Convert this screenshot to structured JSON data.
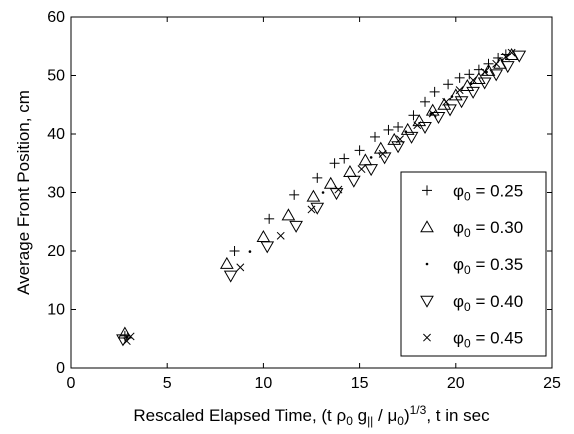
{
  "chart_data": {
    "type": "scatter",
    "title": "",
    "xlabel": "Rescaled Elapsed Time, (t ρ0 g|| / μ0)1/3, t in sec",
    "ylabel": "Average Front Position, cm",
    "xlim": [
      0,
      25
    ],
    "ylim": [
      0,
      60
    ],
    "xticks": [
      0,
      5,
      10,
      15,
      20,
      25
    ],
    "yticks": [
      0,
      10,
      20,
      30,
      40,
      50,
      60
    ],
    "grid": false,
    "legend_position": "bottom-right",
    "series": [
      {
        "name": "φ0 = 0.25",
        "marker": "plus",
        "points": [
          [
            2.8,
            5.5
          ],
          [
            8.5,
            20.0
          ],
          [
            10.3,
            25.5
          ],
          [
            11.6,
            29.6
          ],
          [
            12.8,
            32.5
          ],
          [
            13.7,
            35.0
          ],
          [
            14.2,
            35.8
          ],
          [
            15.0,
            37.2
          ],
          [
            15.8,
            39.5
          ],
          [
            16.5,
            40.7
          ],
          [
            17.0,
            41.2
          ],
          [
            17.8,
            43.2
          ],
          [
            18.4,
            45.5
          ],
          [
            18.9,
            47.2
          ],
          [
            19.6,
            48.5
          ],
          [
            20.2,
            49.6
          ],
          [
            20.7,
            50.2
          ],
          [
            21.2,
            51.0
          ],
          [
            21.7,
            52.0
          ],
          [
            22.2,
            53.0
          ],
          [
            22.6,
            53.6
          ]
        ]
      },
      {
        "name": "φ0 = 0.30",
        "marker": "triangle-up",
        "points": [
          [
            2.8,
            5.9
          ],
          [
            8.1,
            17.8
          ],
          [
            10.0,
            22.4
          ],
          [
            11.3,
            26.1
          ],
          [
            12.6,
            29.3
          ],
          [
            13.5,
            31.5
          ],
          [
            14.5,
            33.5
          ],
          [
            15.3,
            35.5
          ],
          [
            16.1,
            37.5
          ],
          [
            16.8,
            39.0
          ],
          [
            17.5,
            40.7
          ],
          [
            18.1,
            42.2
          ],
          [
            18.8,
            44.0
          ],
          [
            19.4,
            45.0
          ],
          [
            20.0,
            46.6
          ],
          [
            20.6,
            48.2
          ],
          [
            21.2,
            49.4
          ],
          [
            21.7,
            50.8
          ],
          [
            22.3,
            52.0
          ],
          [
            22.9,
            53.5
          ]
        ]
      },
      {
        "name": "φ0 = 0.35",
        "marker": "dot",
        "points": [
          [
            2.9,
            5.3
          ],
          [
            9.3,
            19.9
          ],
          [
            13.1,
            30.0
          ],
          [
            15.6,
            36.0
          ],
          [
            17.4,
            40.4
          ],
          [
            18.7,
            43.5
          ],
          [
            19.8,
            46.4
          ],
          [
            20.8,
            48.6
          ],
          [
            21.6,
            50.6
          ],
          [
            22.4,
            52.6
          ]
        ]
      },
      {
        "name": "φ0 = 0.40",
        "marker": "triangle-down",
        "points": [
          [
            2.7,
            4.9
          ],
          [
            8.3,
            15.8
          ],
          [
            10.2,
            20.8
          ],
          [
            11.7,
            24.3
          ],
          [
            12.8,
            27.4
          ],
          [
            13.8,
            29.9
          ],
          [
            14.7,
            32.0
          ],
          [
            15.6,
            34.0
          ],
          [
            16.3,
            36.0
          ],
          [
            17.0,
            37.9
          ],
          [
            17.7,
            39.5
          ],
          [
            18.4,
            41.2
          ],
          [
            19.1,
            42.9
          ],
          [
            19.7,
            44.2
          ],
          [
            20.3,
            45.6
          ],
          [
            20.9,
            47.2
          ],
          [
            21.5,
            48.8
          ],
          [
            22.1,
            50.2
          ],
          [
            22.7,
            51.6
          ],
          [
            23.3,
            53.4
          ]
        ]
      },
      {
        "name": "φ0 = 0.45",
        "marker": "cross",
        "points": [
          [
            2.9,
            4.6
          ],
          [
            3.1,
            5.4
          ],
          [
            8.8,
            17.2
          ],
          [
            10.9,
            22.6
          ],
          [
            12.5,
            27.1
          ],
          [
            13.9,
            30.5
          ],
          [
            15.1,
            34.0
          ],
          [
            16.2,
            36.6
          ],
          [
            17.1,
            39.1
          ],
          [
            18.0,
            41.5
          ],
          [
            18.8,
            43.5
          ],
          [
            19.5,
            45.5
          ],
          [
            20.2,
            47.5
          ],
          [
            20.9,
            49.2
          ],
          [
            21.5,
            50.6
          ],
          [
            22.1,
            52.0
          ],
          [
            22.6,
            53.2
          ],
          [
            22.9,
            53.9
          ]
        ]
      }
    ]
  }
}
